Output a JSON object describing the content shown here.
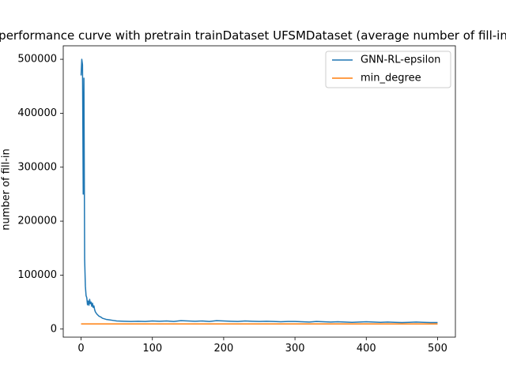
{
  "chart_data": {
    "type": "line",
    "title": "performance curve with pretrain trainDataset UFSMDataset (average number of fill-in",
    "xlabel": "",
    "ylabel": "number of fill-in",
    "xlim": [
      -25,
      525
    ],
    "ylim": [
      -15000,
      525000
    ],
    "x_ticks": [
      0,
      100,
      200,
      300,
      400,
      500
    ],
    "y_ticks": [
      0,
      100000,
      200000,
      300000,
      400000,
      500000
    ],
    "x_tick_labels": [
      "0",
      "100",
      "200",
      "300",
      "400",
      "500"
    ],
    "y_tick_labels": [
      "0",
      "100000",
      "200000",
      "300000",
      "400000",
      "500000"
    ],
    "grid": false,
    "legend": {
      "position": "top-right"
    },
    "series": [
      {
        "name": "GNN-RL-epsilon",
        "color": "#1f77b4",
        "x": [
          0,
          1,
          2,
          3,
          4,
          5,
          6,
          7,
          8,
          9,
          10,
          11,
          12,
          13,
          14,
          15,
          16,
          17,
          18,
          19,
          20,
          22,
          25,
          28,
          30,
          35,
          40,
          45,
          50,
          60,
          70,
          80,
          90,
          100,
          110,
          120,
          130,
          140,
          150,
          160,
          170,
          180,
          190,
          200,
          210,
          220,
          230,
          240,
          250,
          260,
          270,
          280,
          290,
          300,
          310,
          320,
          330,
          340,
          350,
          360,
          370,
          380,
          390,
          400,
          410,
          420,
          430,
          440,
          450,
          460,
          470,
          480,
          490,
          500
        ],
        "values": [
          470000,
          500000,
          490000,
          250000,
          465000,
          130000,
          80000,
          62000,
          58000,
          45000,
          52000,
          44000,
          55000,
          47000,
          50000,
          42000,
          48000,
          40000,
          43000,
          36000,
          32000,
          28000,
          24000,
          22000,
          20000,
          18000,
          17000,
          16000,
          15000,
          14500,
          14000,
          14500,
          14000,
          15000,
          14500,
          15000,
          14000,
          15500,
          15000,
          14500,
          15000,
          14000,
          15500,
          15000,
          14500,
          14000,
          15000,
          14500,
          14000,
          14500,
          14000,
          13500,
          14000,
          14000,
          13500,
          13000,
          14000,
          13500,
          13000,
          13500,
          13000,
          12500,
          13000,
          13500,
          13000,
          12500,
          13000,
          12500,
          12000,
          12500,
          13000,
          12500,
          12000,
          12000
        ]
      },
      {
        "name": "min_degree",
        "color": "#ff7f0e",
        "x": [
          0,
          50,
          100,
          150,
          200,
          250,
          300,
          350,
          400,
          450,
          500
        ],
        "values": [
          9500,
          9500,
          9500,
          9500,
          9500,
          9500,
          9500,
          9500,
          9500,
          9500,
          9500
        ]
      }
    ]
  }
}
